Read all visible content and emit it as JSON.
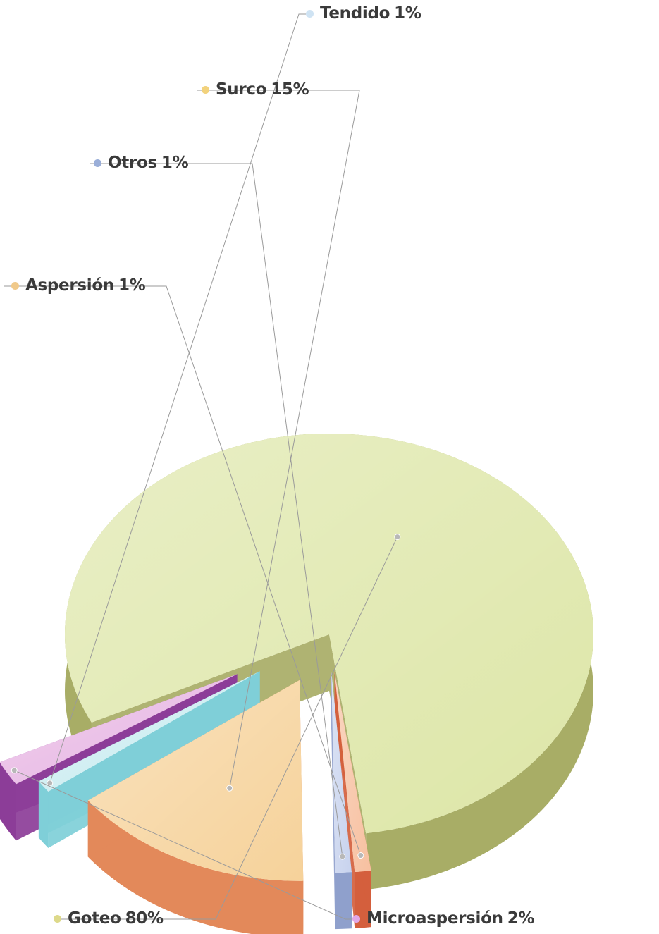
{
  "chart_data": {
    "type": "pie",
    "title": "",
    "series": [
      {
        "label": "Goteo",
        "value_label": "80%",
        "value": 80,
        "color": "#dde6a7",
        "side_color": "#a8ad66",
        "marker": "#ddd98a"
      },
      {
        "label": "Aspersión",
        "value_label": "1%",
        "value": 1,
        "color": "#f7c0a0",
        "side_color": "#d45f3d",
        "marker": "#f0c98a"
      },
      {
        "label": "Otros",
        "value_label": "1%",
        "value": 1,
        "color": "#c8d3ee",
        "side_color": "#8fa0cc",
        "marker": "#9aaed8"
      },
      {
        "label": "Surco",
        "value_label": "15%",
        "value": 15,
        "color": "#f6d29a",
        "side_color": "#e3895a",
        "marker": "#f2d27c"
      },
      {
        "label": "Tendido",
        "value_label": "1%",
        "value": 1,
        "color": "#c9ecf0",
        "side_color": "#7fcfd8",
        "marker": "#cfe3f3"
      },
      {
        "label": "Microaspersión",
        "value_label": "2%",
        "value": 2,
        "color": "#e7b5e3",
        "side_color": "#8c3d98",
        "marker": "#e2a8e6"
      }
    ]
  }
}
